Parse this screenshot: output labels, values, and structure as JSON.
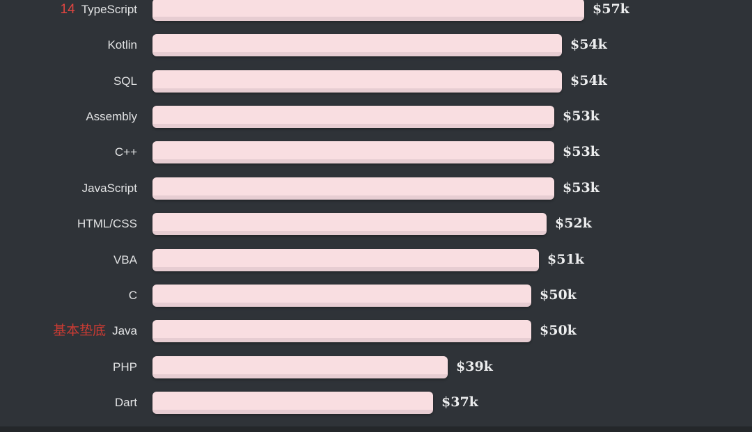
{
  "page": {
    "background_color": "#2f3338",
    "bottom_strip_color": "#24272a"
  },
  "colors": {
    "bar_fill": "#f9dee1",
    "bar_bottom_edge": "#e7cdd2",
    "category_label": "#e2e3e4",
    "value_label": "#edeeef"
  },
  "chart_data": {
    "type": "bar",
    "orientation": "horizontal",
    "title": "",
    "xlabel": "",
    "ylabel": "",
    "unit": "USD thousands (salary)",
    "xlim": [
      0,
      79
    ],
    "grid": false,
    "legend": false,
    "categories": [
      "TypeScript",
      "Kotlin",
      "SQL",
      "Assembly",
      "C++",
      "JavaScript",
      "HTML/CSS",
      "VBA",
      "C",
      "Java",
      "PHP",
      "Dart"
    ],
    "values": [
      57,
      54,
      54,
      53,
      53,
      53,
      52,
      51,
      50,
      50,
      39,
      37
    ],
    "value_labels": [
      "$57k",
      "$54k",
      "$54k",
      "$53k",
      "$53k",
      "$53k",
      "$52k",
      "$51k",
      "$50k",
      "$50k",
      "$39k",
      "$37k"
    ],
    "annotations": [
      {
        "text": "14",
        "target": "TypeScript",
        "color": "#e04540"
      },
      {
        "text": "基本垫底",
        "target": "Java",
        "color": "#cb3b33"
      }
    ]
  }
}
